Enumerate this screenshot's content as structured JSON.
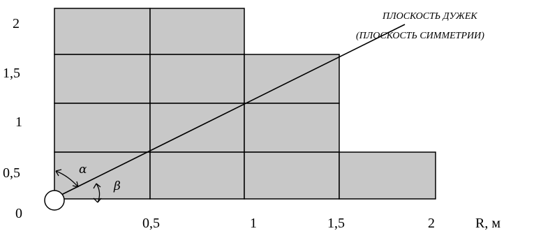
{
  "diagram": {
    "annotation": {
      "line1": "ПЛОСКОСТЬ ДУЖЕК",
      "line2": "(ПЛОСКОСТЬ СИММЕТРИИ)"
    },
    "x_ticks": [
      "0,5",
      "1",
      "1,5",
      "2"
    ],
    "x_unit_label": "R, м",
    "y_ticks": [
      "2",
      "1,5",
      "1",
      "0,5",
      "0"
    ],
    "angle_labels": {
      "alpha": "α",
      "beta": "β"
    },
    "grid": {
      "cell_size_m": 0.5,
      "fill_color": "#c8c8c8",
      "columns": [
        {
          "r_from": 0,
          "r_to": 0.5,
          "height_m": 2
        },
        {
          "r_from": 0.5,
          "r_to": 1,
          "height_m": 2
        },
        {
          "r_from": 1,
          "r_to": 1.5,
          "height_m": 1.5
        },
        {
          "r_from": 1.5,
          "r_to": 2,
          "height_m": 0.5
        }
      ]
    },
    "colors": {
      "fill": "#c8c8c8",
      "line": "#000000"
    }
  }
}
